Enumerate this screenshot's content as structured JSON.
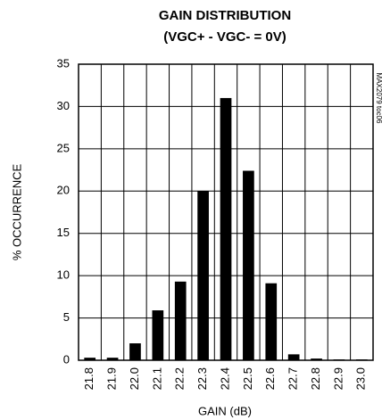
{
  "chart_data": {
    "type": "bar",
    "title": "GAIN DISTRIBUTION",
    "subtitle": "(VGC+ - VGC- = 0V)",
    "x_label": "GAIN (dB)",
    "y_label": "% OCCURRENCE",
    "annotation": "MAX2079 toc06",
    "categories": [
      "21.8",
      "21.9",
      "22.0",
      "22.1",
      "22.2",
      "22.3",
      "22.4",
      "22.5",
      "22.6",
      "22.7",
      "22.8",
      "22.9",
      "23.0"
    ],
    "values": [
      0.3,
      0.3,
      2.0,
      5.9,
      9.3,
      20,
      31,
      22.4,
      9.1,
      0.7,
      0.2,
      0.1,
      0.1
    ],
    "color": "#000000",
    "ylim": [
      0,
      35
    ],
    "yticks": [
      0,
      5,
      10,
      15,
      20,
      25,
      30,
      35
    ],
    "grid": true
  }
}
